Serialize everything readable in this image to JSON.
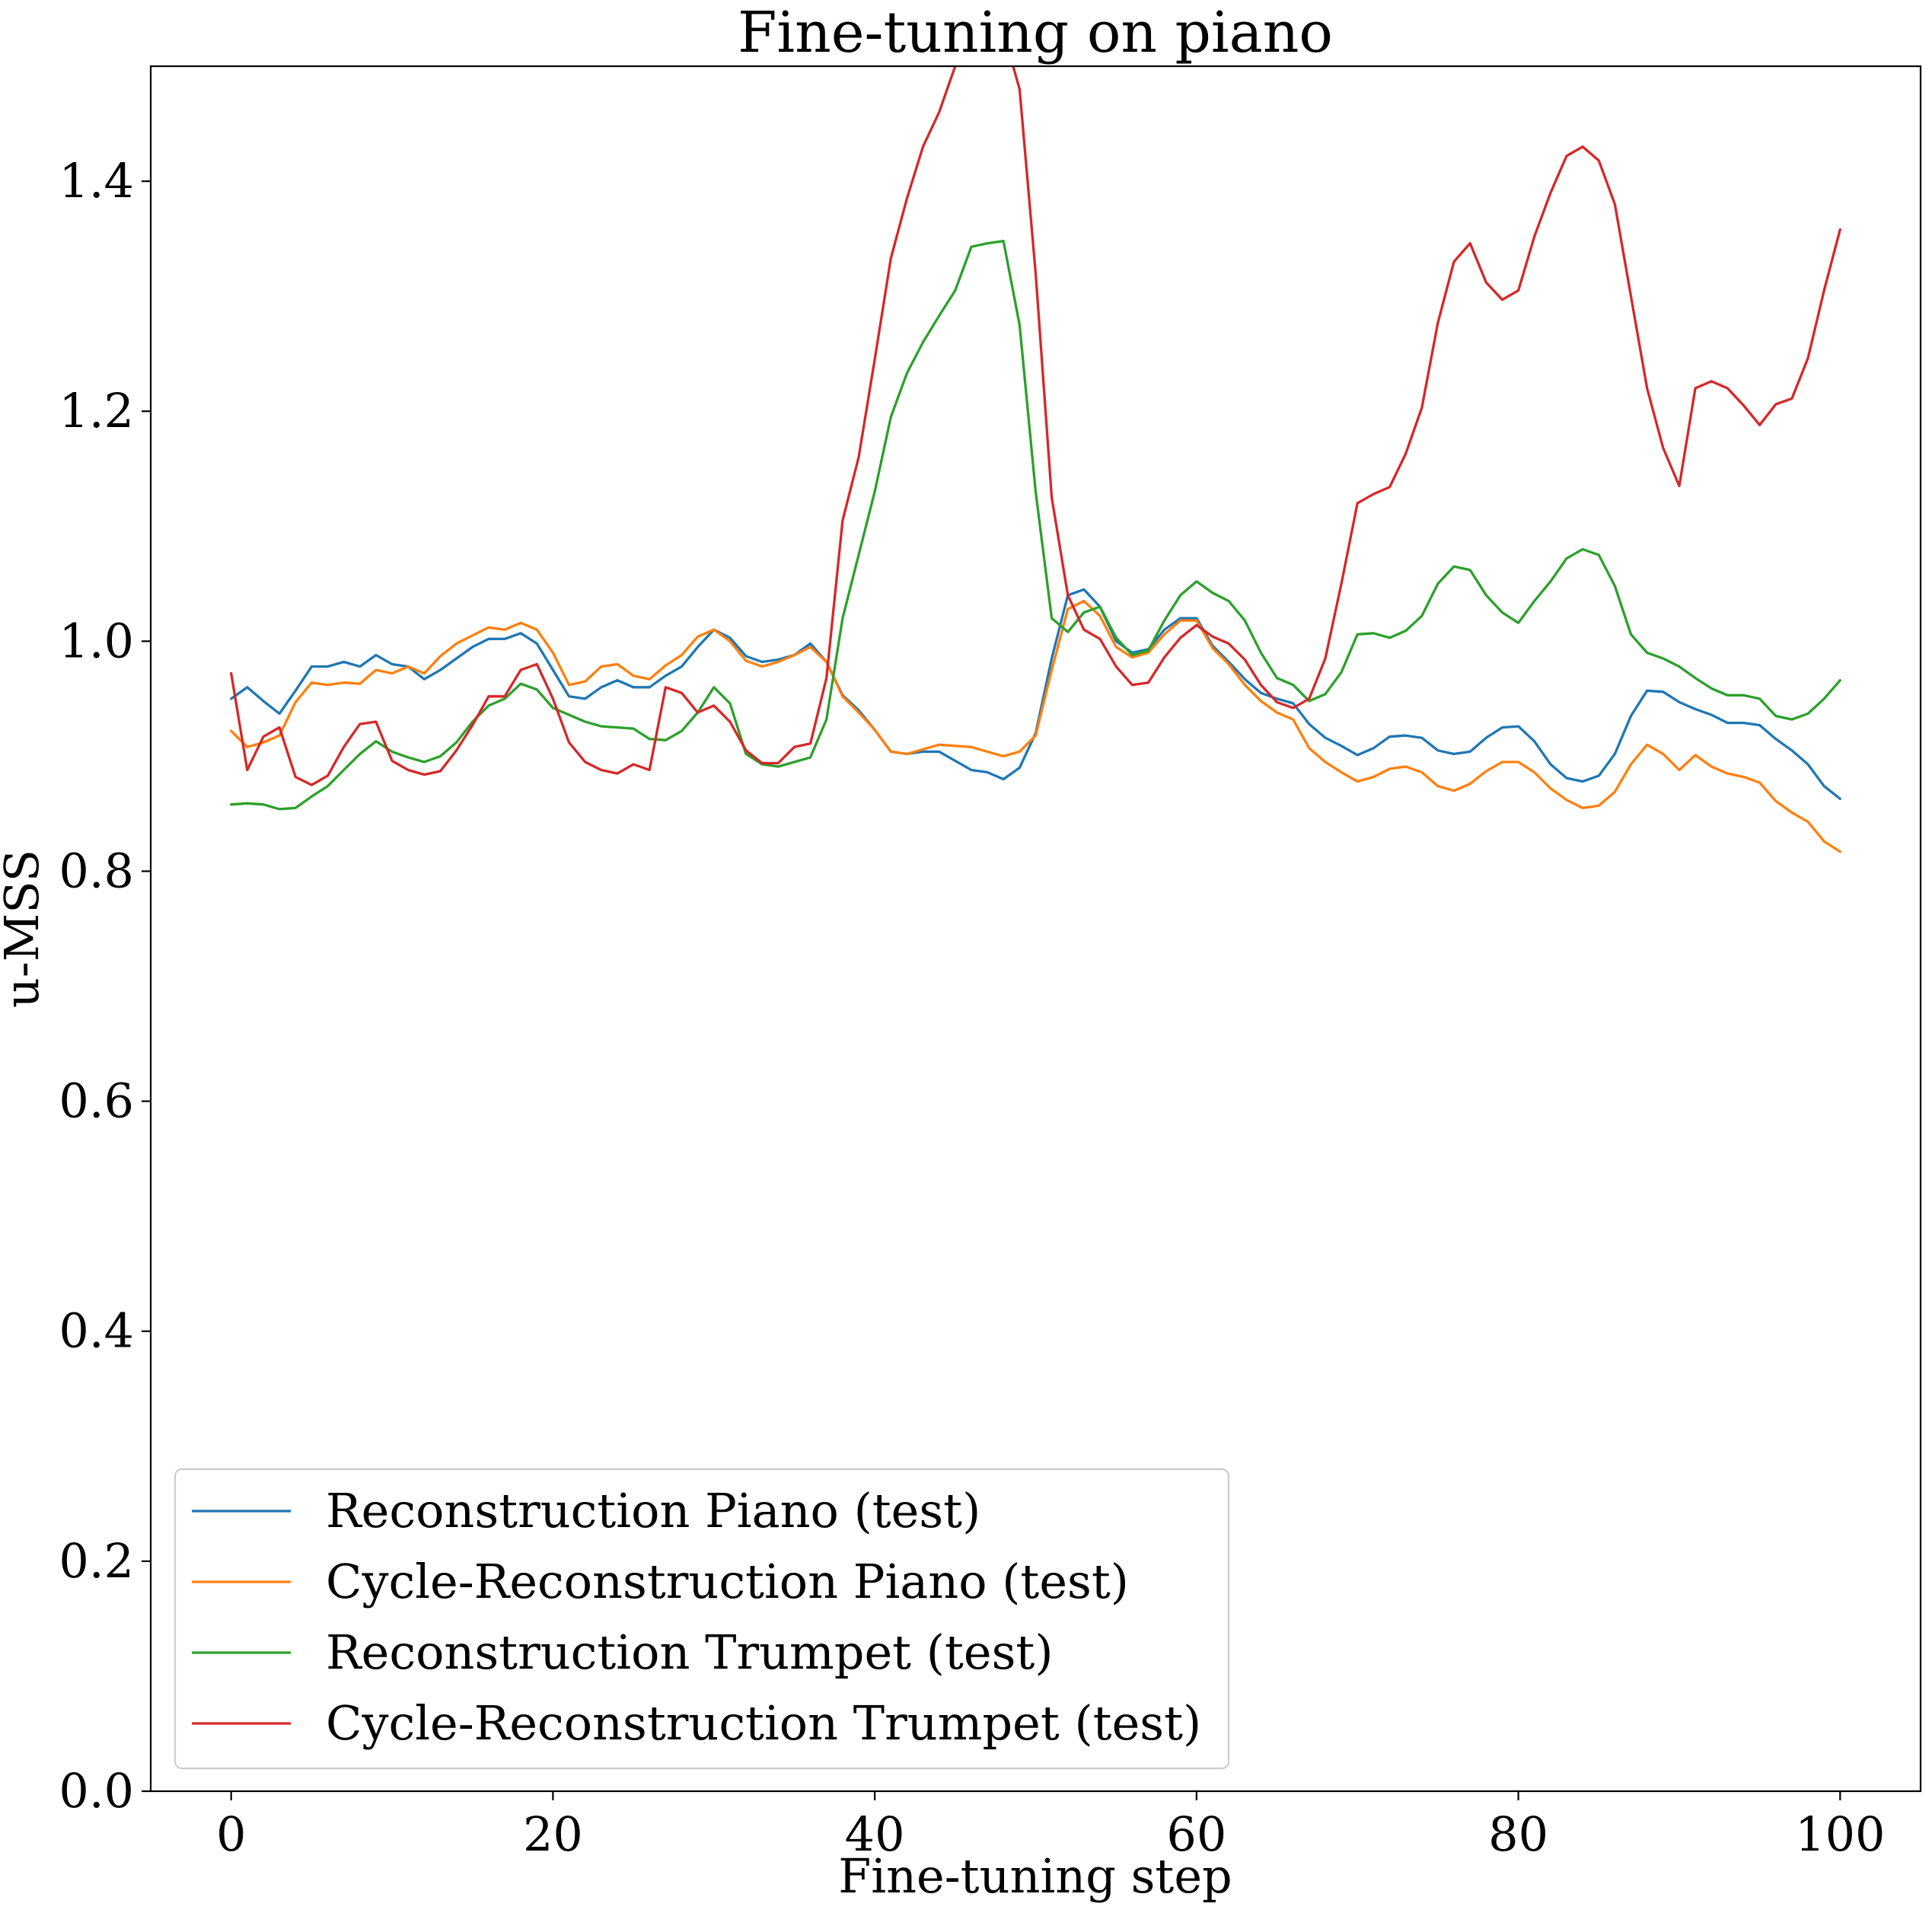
{
  "chart_data": {
    "type": "line",
    "title": "Fine-tuning on piano",
    "xlabel": "Fine-tuning step",
    "ylabel": "u-MSS",
    "xlim": [
      -5,
      105
    ],
    "ylim": [
      0.0,
      1.5
    ],
    "xticks": [
      0,
      20,
      40,
      60,
      80,
      100
    ],
    "xtick_labels": [
      "0",
      "20",
      "40",
      "60",
      "80",
      "100"
    ],
    "yticks": [
      0.0,
      0.2,
      0.4,
      0.6,
      0.8,
      1.0,
      1.2,
      1.4
    ],
    "ytick_labels": [
      "0.0",
      "0.2",
      "0.4",
      "0.6",
      "0.8",
      "1.0",
      "1.2",
      "1.4"
    ],
    "grid": false,
    "legend_position": "lower-left",
    "x": [
      0,
      1,
      2,
      3,
      4,
      5,
      6,
      7,
      8,
      9,
      10,
      11,
      12,
      13,
      14,
      15,
      16,
      17,
      18,
      19,
      20,
      21,
      22,
      23,
      24,
      25,
      26,
      27,
      28,
      29,
      30,
      31,
      32,
      33,
      34,
      35,
      36,
      37,
      38,
      39,
      40,
      41,
      42,
      43,
      44,
      45,
      46,
      47,
      48,
      49,
      50,
      51,
      52,
      53,
      54,
      55,
      56,
      57,
      58,
      59,
      60,
      61,
      62,
      63,
      64,
      65,
      66,
      67,
      68,
      69,
      70,
      71,
      72,
      73,
      74,
      75,
      76,
      77,
      78,
      79,
      80,
      81,
      82,
      83,
      84,
      85,
      86,
      87,
      88,
      89,
      90,
      91,
      92,
      93,
      94,
      95,
      96,
      97,
      98,
      99,
      100
    ],
    "series": [
      {
        "name": "Reconstruction Piano (test)",
        "color": "#1f77b4",
        "values": [
          0.95,
          0.96,
          0.948,
          0.937,
          0.957,
          0.978,
          0.978,
          0.982,
          0.978,
          0.988,
          0.98,
          0.978,
          0.967,
          0.975,
          0.985,
          0.995,
          1.002,
          1.002,
          1.007,
          0.998,
          0.975,
          0.952,
          0.95,
          0.96,
          0.966,
          0.96,
          0.96,
          0.97,
          0.978,
          0.995,
          1.01,
          1.003,
          0.987,
          0.982,
          0.984,
          0.988,
          0.998,
          0.982,
          0.953,
          0.94,
          0.923,
          0.904,
          0.902,
          0.904,
          0.904,
          0.896,
          0.888,
          0.886,
          0.88,
          0.89,
          0.92,
          0.985,
          1.04,
          1.045,
          1.03,
          1.0,
          0.99,
          0.993,
          1.01,
          1.02,
          1.02,
          0.996,
          0.982,
          0.967,
          0.955,
          0.95,
          0.946,
          0.928,
          0.916,
          0.909,
          0.901,
          0.907,
          0.917,
          0.918,
          0.916,
          0.905,
          0.902,
          0.904,
          0.916,
          0.925,
          0.926,
          0.913,
          0.893,
          0.881,
          0.878,
          0.883,
          0.902,
          0.935,
          0.957,
          0.956,
          0.947,
          0.941,
          0.936,
          0.929,
          0.929,
          0.927,
          0.915,
          0.905,
          0.893,
          0.874,
          0.863
        ]
      },
      {
        "name": "Cycle-Reconstruction Piano (test)",
        "color": "#ff7f0e",
        "values": [
          0.922,
          0.908,
          0.912,
          0.918,
          0.947,
          0.964,
          0.962,
          0.964,
          0.963,
          0.975,
          0.972,
          0.978,
          0.972,
          0.987,
          0.998,
          1.005,
          1.012,
          1.01,
          1.016,
          1.01,
          0.99,
          0.962,
          0.965,
          0.978,
          0.98,
          0.97,
          0.967,
          0.979,
          0.988,
          1.004,
          1.01,
          1.0,
          0.983,
          0.978,
          0.982,
          0.988,
          0.995,
          0.982,
          0.952,
          0.938,
          0.923,
          0.904,
          0.902,
          0.906,
          0.91,
          0.909,
          0.908,
          0.904,
          0.9,
          0.904,
          0.918,
          0.975,
          1.028,
          1.035,
          1.022,
          0.995,
          0.986,
          0.99,
          1.006,
          1.018,
          1.018,
          0.994,
          0.98,
          0.962,
          0.948,
          0.938,
          0.932,
          0.907,
          0.895,
          0.886,
          0.878,
          0.882,
          0.889,
          0.891,
          0.886,
          0.874,
          0.87,
          0.876,
          0.887,
          0.895,
          0.895,
          0.886,
          0.872,
          0.862,
          0.855,
          0.857,
          0.869,
          0.893,
          0.91,
          0.902,
          0.888,
          0.901,
          0.891,
          0.885,
          0.882,
          0.877,
          0.861,
          0.851,
          0.843,
          0.826,
          0.817
        ]
      },
      {
        "name": "Reconstruction Trumpet (test)",
        "color": "#2ca02c",
        "values": [
          0.858,
          0.859,
          0.858,
          0.854,
          0.855,
          0.865,
          0.874,
          0.888,
          0.902,
          0.913,
          0.904,
          0.899,
          0.895,
          0.9,
          0.912,
          0.93,
          0.944,
          0.95,
          0.963,
          0.958,
          0.942,
          0.936,
          0.93,
          0.926,
          0.925,
          0.924,
          0.915,
          0.914,
          0.922,
          0.938,
          0.96,
          0.946,
          0.902,
          0.893,
          0.891,
          0.895,
          0.899,
          0.932,
          1.02,
          1.075,
          1.13,
          1.195,
          1.233,
          1.26,
          1.283,
          1.305,
          1.343,
          1.346,
          1.348,
          1.275,
          1.13,
          1.02,
          1.008,
          1.025,
          1.03,
          1.003,
          0.988,
          0.992,
          1.018,
          1.04,
          1.052,
          1.042,
          1.035,
          1.018,
          0.99,
          0.968,
          0.962,
          0.948,
          0.954,
          0.973,
          1.006,
          1.007,
          1.003,
          1.009,
          1.022,
          1.05,
          1.065,
          1.062,
          1.04,
          1.025,
          1.016,
          1.035,
          1.052,
          1.072,
          1.08,
          1.075,
          1.048,
          1.006,
          0.99,
          0.985,
          0.978,
          0.968,
          0.959,
          0.953,
          0.953,
          0.95,
          0.935,
          0.932,
          0.937,
          0.95,
          0.966
        ]
      },
      {
        "name": "Cycle-Reconstruction Trumpet (test)",
        "color": "#d62728",
        "values": [
          0.972,
          0.888,
          0.917,
          0.925,
          0.882,
          0.875,
          0.883,
          0.908,
          0.928,
          0.93,
          0.896,
          0.888,
          0.884,
          0.887,
          0.905,
          0.927,
          0.952,
          0.952,
          0.975,
          0.98,
          0.95,
          0.912,
          0.895,
          0.888,
          0.885,
          0.893,
          0.888,
          0.96,
          0.955,
          0.938,
          0.944,
          0.93,
          0.905,
          0.894,
          0.894,
          0.908,
          0.911,
          0.968,
          1.105,
          1.16,
          1.245,
          1.333,
          1.385,
          1.43,
          1.46,
          1.5,
          1.54,
          1.56,
          1.53,
          1.48,
          1.32,
          1.125,
          1.04,
          1.01,
          1.002,
          0.978,
          0.962,
          0.964,
          0.986,
          1.003,
          1.014,
          1.004,
          0.998,
          0.984,
          0.962,
          0.947,
          0.942,
          0.95,
          0.985,
          1.05,
          1.12,
          1.128,
          1.134,
          1.163,
          1.203,
          1.277,
          1.33,
          1.346,
          1.312,
          1.297,
          1.305,
          1.352,
          1.39,
          1.422,
          1.43,
          1.418,
          1.38,
          1.3,
          1.22,
          1.168,
          1.135,
          1.22,
          1.226,
          1.22,
          1.205,
          1.188,
          1.206,
          1.211,
          1.246,
          1.305,
          1.358
        ]
      }
    ]
  }
}
